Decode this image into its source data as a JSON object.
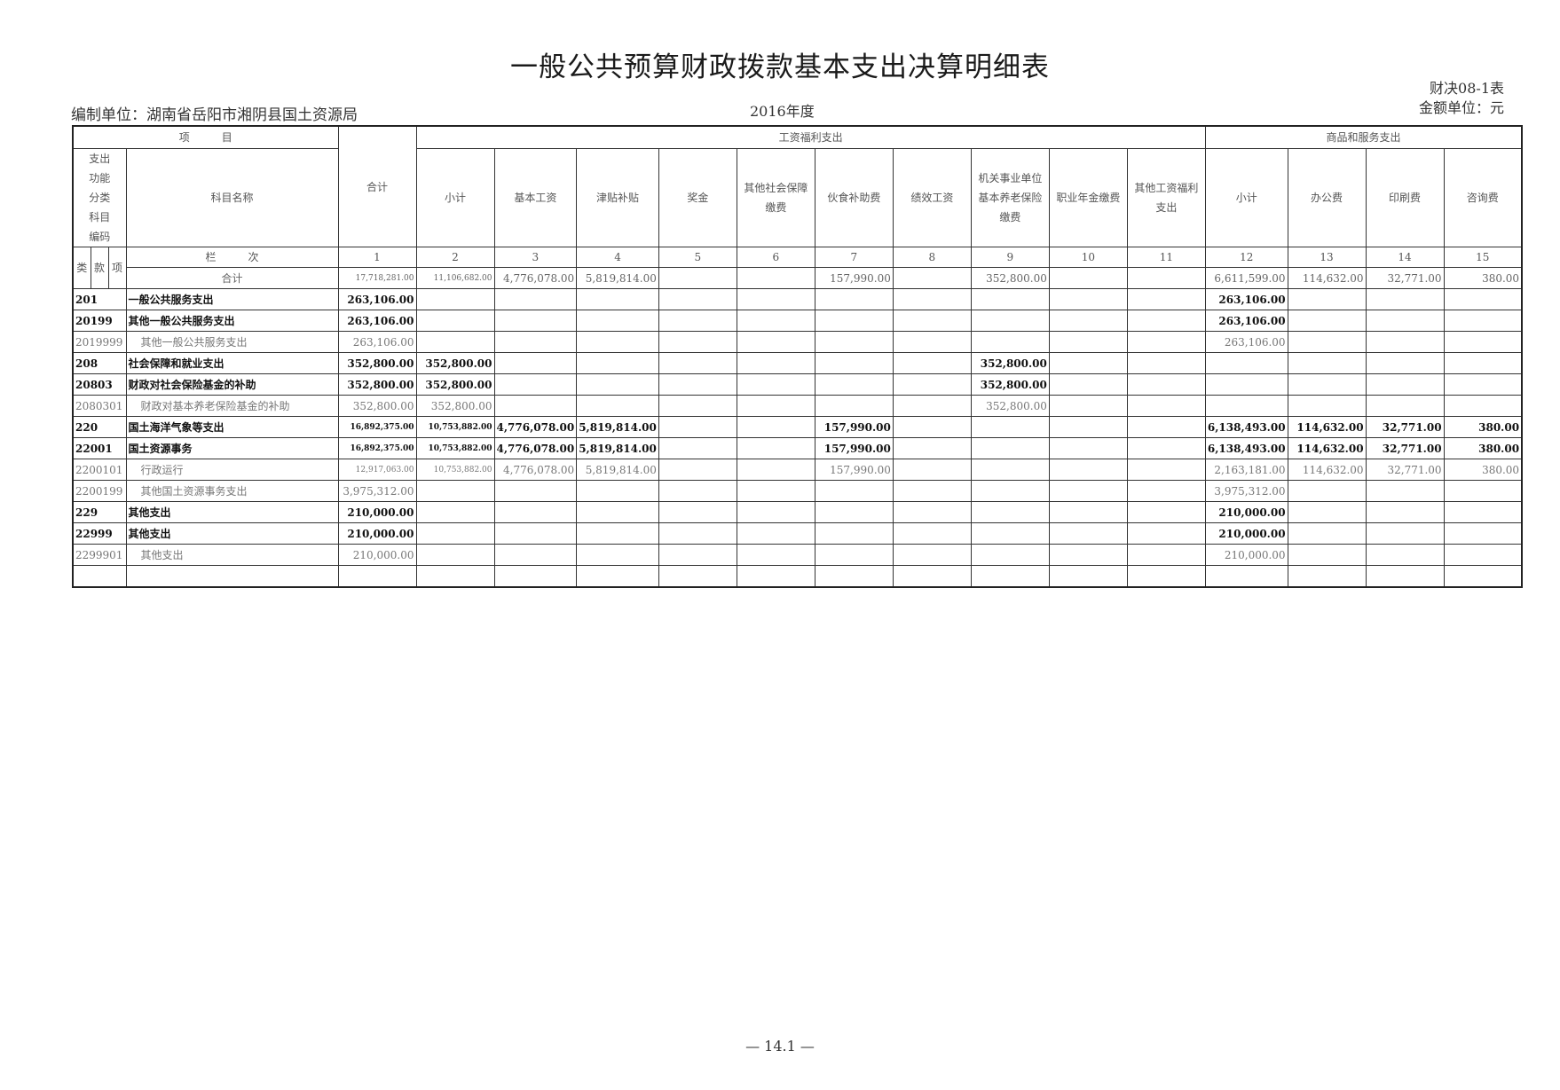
{
  "title": "一般公共预算财政拨款基本支出决算明细表",
  "unit": "编制单位：湖南省岳阳市湘阴县国土资源局",
  "year": "2016年度",
  "form_no": "财决08-1表",
  "money_unit": "金额单位：元",
  "footer": "— 14.1 —",
  "header": {
    "item": "项　　　目",
    "total": "合计",
    "group_wage": "工资福利支出",
    "group_goods": "商品和服务支出",
    "code_label": "支出功能分类科目编码",
    "name_label": "科目名称",
    "sub": [
      "小计",
      "基本工资",
      "津贴补贴",
      "奖金",
      "其他社会保障缴费",
      "伙食补助费",
      "绩效工资",
      "机关事业单位基本养老保险缴费",
      "职业年金缴费",
      "其他工资福利支出",
      "小计",
      "办公费",
      "印刷费",
      "咨询费"
    ],
    "lei": "类",
    "kuan": "款",
    "xiang": "项",
    "lanci": "栏　　　次",
    "col_nums": [
      "1",
      "2",
      "3",
      "4",
      "5",
      "6",
      "7",
      "8",
      "9",
      "10",
      "11",
      "12",
      "13",
      "14",
      "15"
    ],
    "sum_label": "合计"
  },
  "total_row": [
    "17,718,281.00",
    "11,106,682.00",
    "4,776,078.00",
    "5,819,814.00",
    "",
    "",
    "157,990.00",
    "",
    "352,800.00",
    "",
    "",
    "6,611,599.00",
    "114,632.00",
    "32,771.00",
    "380.00"
  ],
  "rows": [
    {
      "code": "201",
      "name": "一般公共服务支出",
      "level": 1,
      "values": [
        "263,106.00",
        "",
        "",
        "",
        "",
        "",
        "",
        "",
        "",
        "",
        "",
        "263,106.00",
        "",
        "",
        ""
      ]
    },
    {
      "code": "20199",
      "name": "其他一般公共服务支出",
      "level": 2,
      "values": [
        "263,106.00",
        "",
        "",
        "",
        "",
        "",
        "",
        "",
        "",
        "",
        "",
        "263,106.00",
        "",
        "",
        ""
      ]
    },
    {
      "code": "2019999",
      "name": "其他一般公共服务支出",
      "level": 3,
      "values": [
        "263,106.00",
        "",
        "",
        "",
        "",
        "",
        "",
        "",
        "",
        "",
        "",
        "263,106.00",
        "",
        "",
        ""
      ]
    },
    {
      "code": "208",
      "name": "社会保障和就业支出",
      "level": 1,
      "values": [
        "352,800.00",
        "352,800.00",
        "",
        "",
        "",
        "",
        "",
        "",
        "352,800.00",
        "",
        "",
        "",
        "",
        "",
        ""
      ]
    },
    {
      "code": "20803",
      "name": "财政对社会保险基金的补助",
      "level": 2,
      "values": [
        "352,800.00",
        "352,800.00",
        "",
        "",
        "",
        "",
        "",
        "",
        "352,800.00",
        "",
        "",
        "",
        "",
        "",
        ""
      ]
    },
    {
      "code": "2080301",
      "name": "财政对基本养老保险基金的补助",
      "level": 3,
      "values": [
        "352,800.00",
        "352,800.00",
        "",
        "",
        "",
        "",
        "",
        "",
        "352,800.00",
        "",
        "",
        "",
        "",
        "",
        ""
      ]
    },
    {
      "code": "220",
      "name": "国土海洋气象等支出",
      "level": 1,
      "values": [
        "16,892,375.00",
        "10,753,882.00",
        "4,776,078.00",
        "5,819,814.00",
        "",
        "",
        "157,990.00",
        "",
        "",
        "",
        "",
        "6,138,493.00",
        "114,632.00",
        "32,771.00",
        "380.00"
      ]
    },
    {
      "code": "22001",
      "name": "国土资源事务",
      "level": 2,
      "values": [
        "16,892,375.00",
        "10,753,882.00",
        "4,776,078.00",
        "5,819,814.00",
        "",
        "",
        "157,990.00",
        "",
        "",
        "",
        "",
        "6,138,493.00",
        "114,632.00",
        "32,771.00",
        "380.00"
      ]
    },
    {
      "code": "2200101",
      "name": "行政运行",
      "level": 3,
      "values": [
        "12,917,063.00",
        "10,753,882.00",
        "4,776,078.00",
        "5,819,814.00",
        "",
        "",
        "157,990.00",
        "",
        "",
        "",
        "",
        "2,163,181.00",
        "114,632.00",
        "32,771.00",
        "380.00"
      ]
    },
    {
      "code": "2200199",
      "name": "其他国土资源事务支出",
      "level": 3,
      "values": [
        "3,975,312.00",
        "",
        "",
        "",
        "",
        "",
        "",
        "",
        "",
        "",
        "",
        "3,975,312.00",
        "",
        "",
        ""
      ]
    },
    {
      "code": "229",
      "name": "其他支出",
      "level": 1,
      "values": [
        "210,000.00",
        "",
        "",
        "",
        "",
        "",
        "",
        "",
        "",
        "",
        "",
        "210,000.00",
        "",
        "",
        ""
      ]
    },
    {
      "code": "22999",
      "name": "其他支出",
      "level": 2,
      "values": [
        "210,000.00",
        "",
        "",
        "",
        "",
        "",
        "",
        "",
        "",
        "",
        "",
        "210,000.00",
        "",
        "",
        ""
      ]
    },
    {
      "code": "2299901",
      "name": "其他支出",
      "level": 3,
      "values": [
        "210,000.00",
        "",
        "",
        "",
        "",
        "",
        "",
        "",
        "",
        "",
        "",
        "210,000.00",
        "",
        "",
        ""
      ]
    }
  ]
}
